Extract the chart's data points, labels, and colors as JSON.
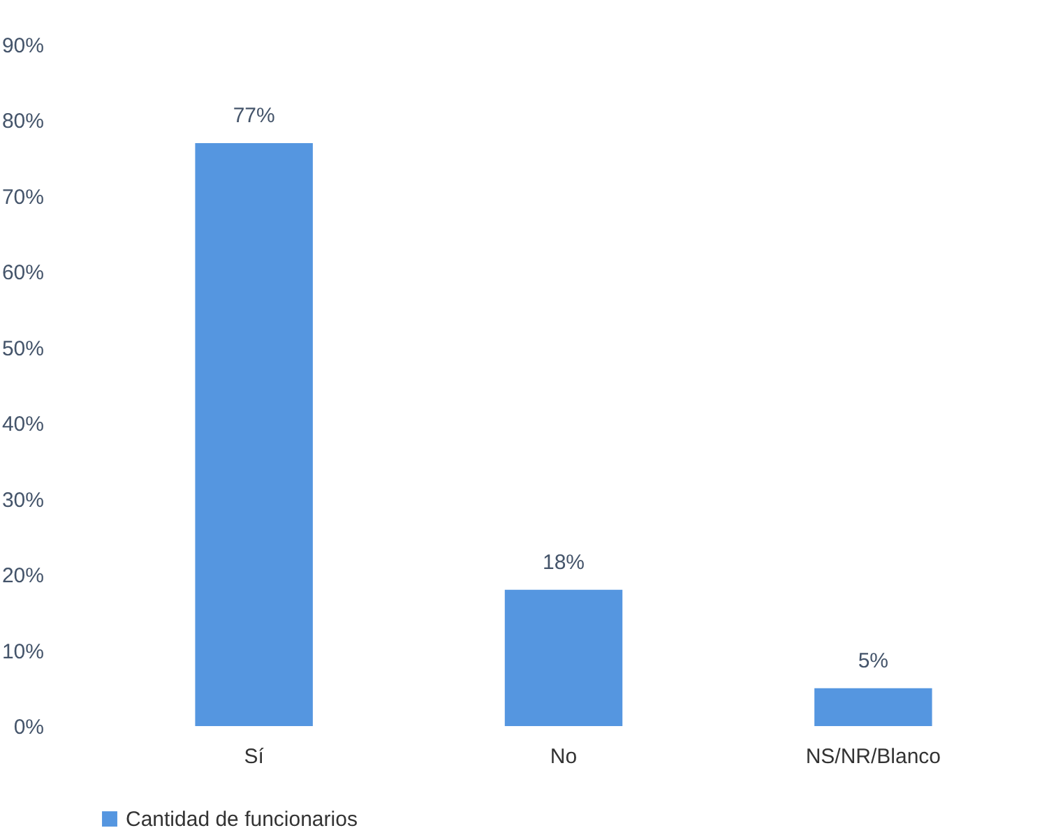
{
  "chart_data": {
    "type": "bar",
    "categories": [
      "Sí",
      "No",
      "NS/NR/Blanco"
    ],
    "series": [
      {
        "name": "Cantidad de funcionarios",
        "color": "#5596e0",
        "values": [
          77,
          18,
          5
        ],
        "value_labels": [
          "77%",
          "18%",
          "5%"
        ]
      }
    ],
    "ylim": [
      0,
      90
    ],
    "yticks": [
      {
        "value": 0,
        "label": "0%"
      },
      {
        "value": 10,
        "label": "10%"
      },
      {
        "value": 20,
        "label": "20%"
      },
      {
        "value": 30,
        "label": "30%"
      },
      {
        "value": 40,
        "label": "40%"
      },
      {
        "value": 50,
        "label": "50%"
      },
      {
        "value": 60,
        "label": "60%"
      },
      {
        "value": 70,
        "label": "70%"
      },
      {
        "value": 80,
        "label": "80%"
      },
      {
        "value": 90,
        "label": "90%"
      }
    ],
    "grid": false,
    "legend": "bottom"
  }
}
